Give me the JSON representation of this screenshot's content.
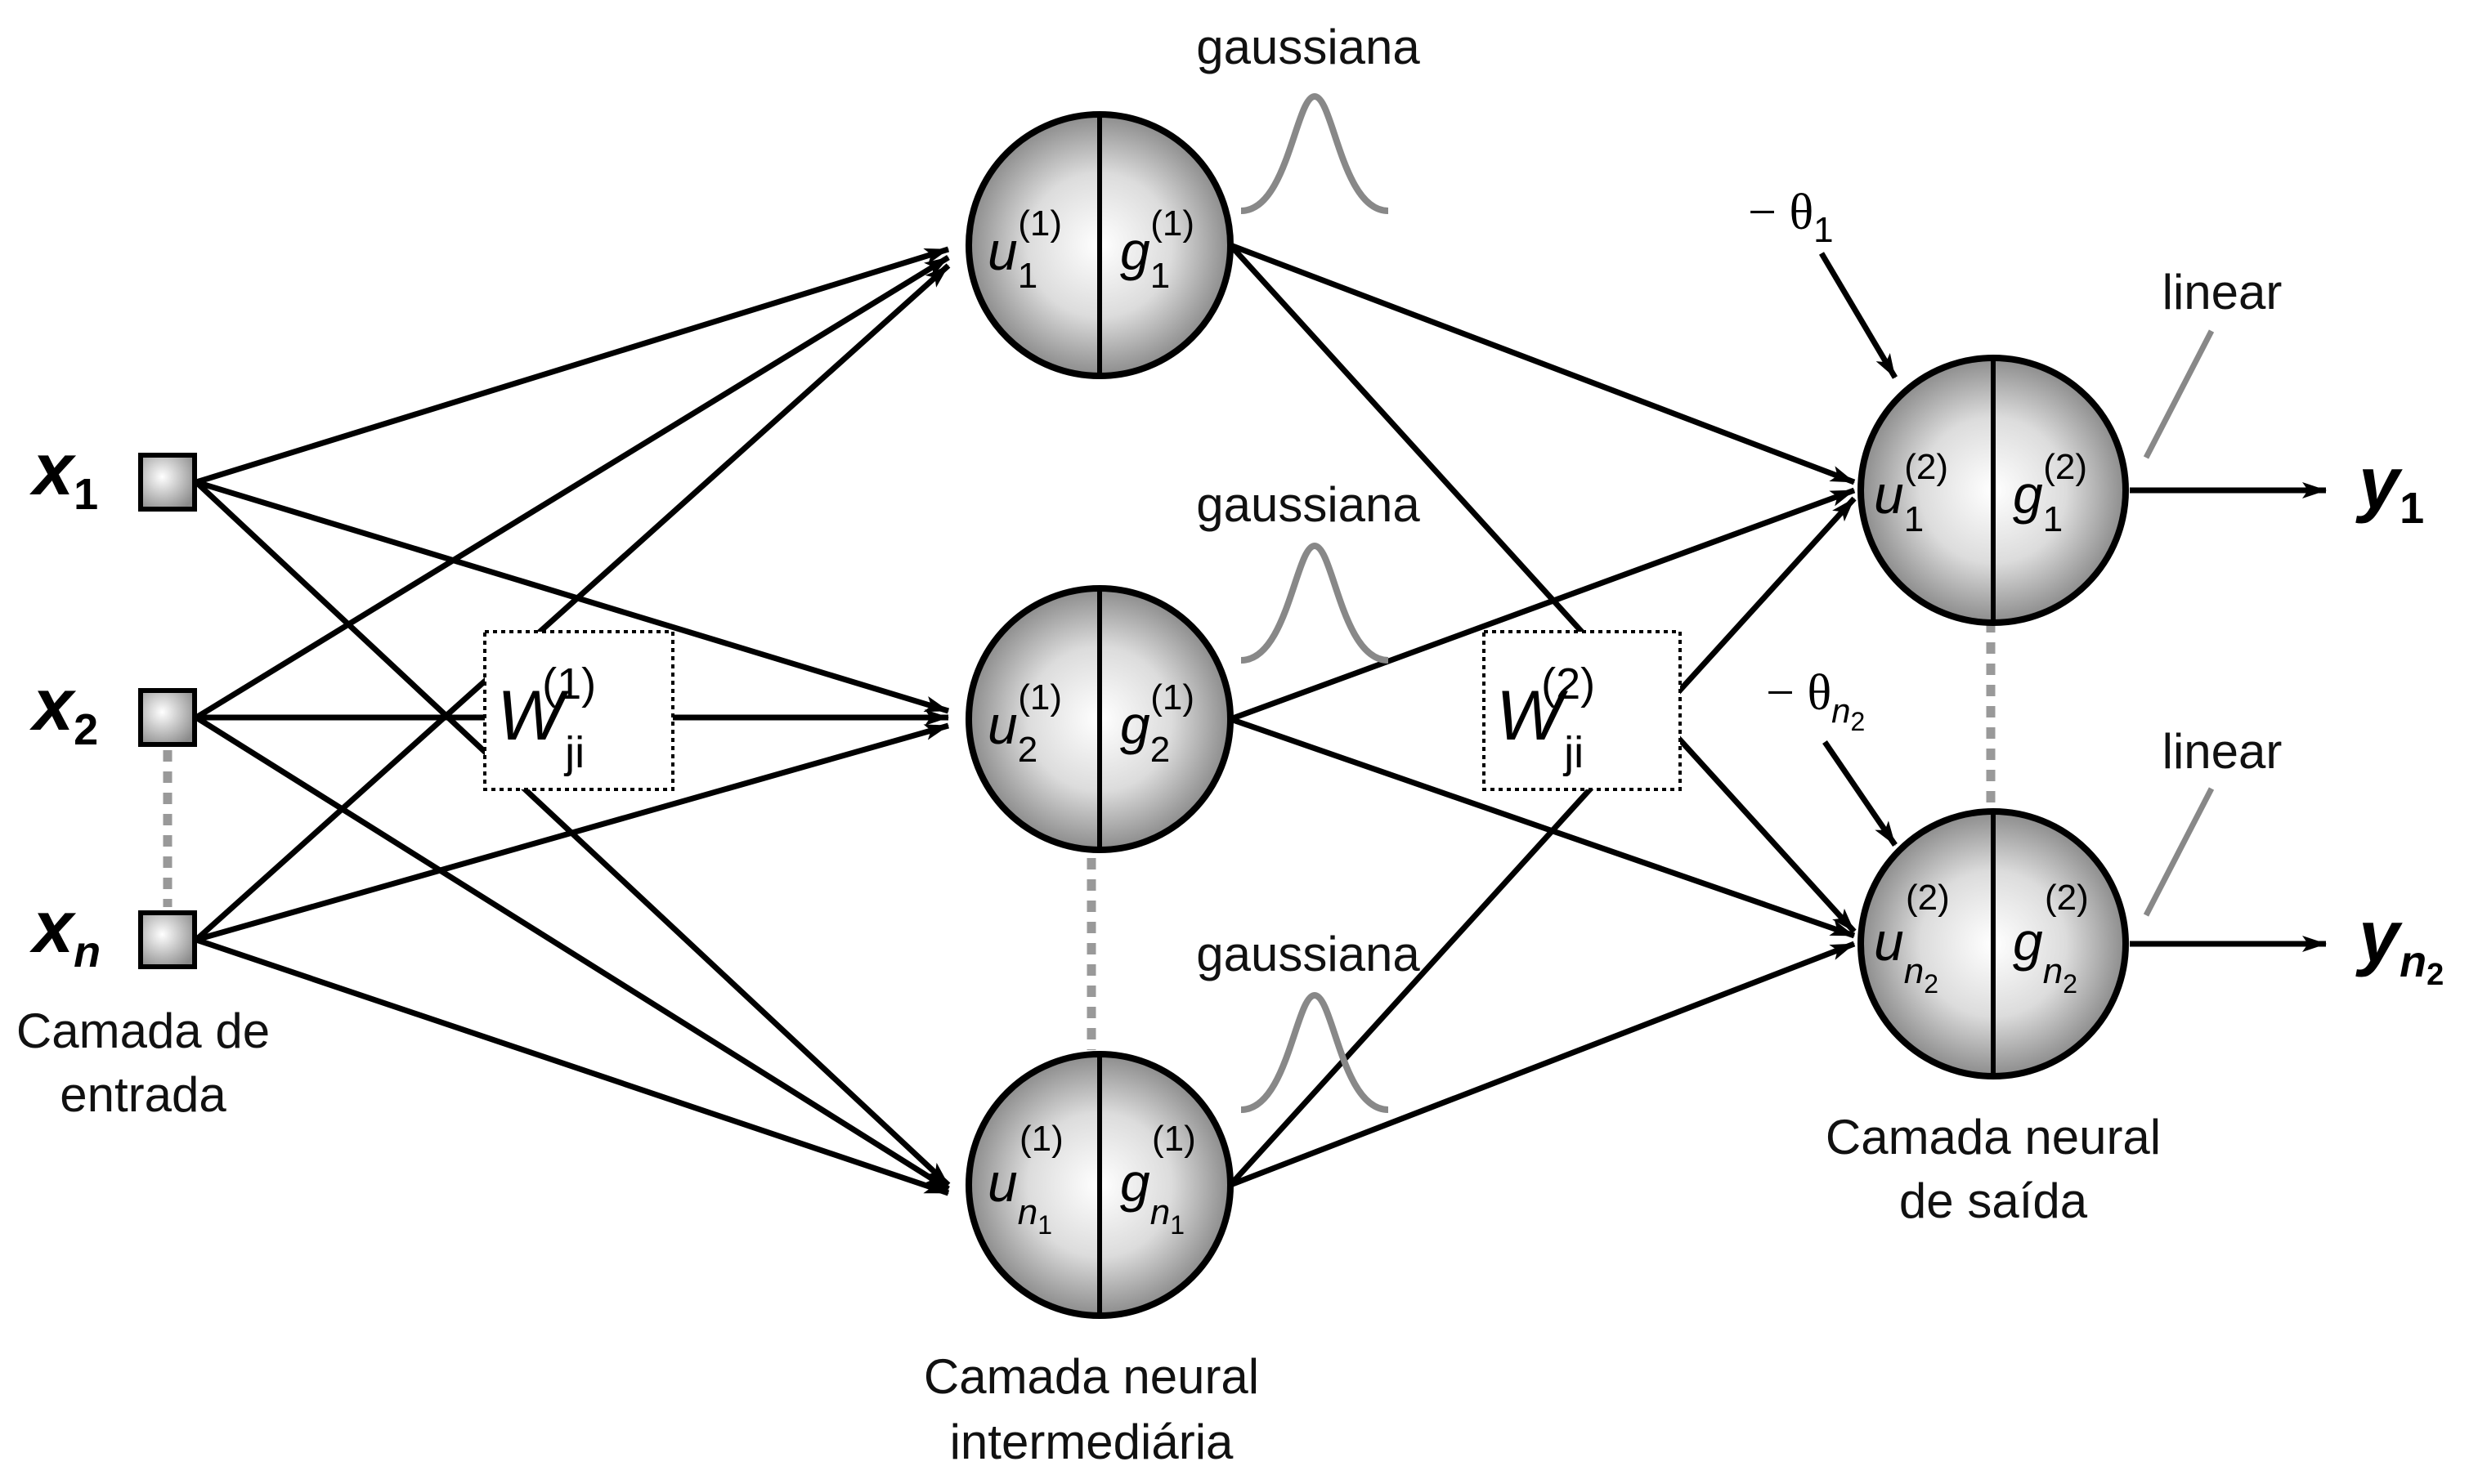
{
  "inputs": {
    "x1": {
      "base": "x",
      "sub": "1"
    },
    "x2": {
      "base": "x",
      "sub": "2"
    },
    "xn": {
      "base": "x",
      "sub": "n"
    },
    "caption_line1": "Camada de",
    "caption_line2": "entrada"
  },
  "hidden": {
    "activation_label": "gaussiana",
    "caption_line1": "Camada neural",
    "caption_line2": "intermediária",
    "neurons": [
      {
        "u": "u",
        "g": "g",
        "sub": "1",
        "sup": "(1)"
      },
      {
        "u": "u",
        "g": "g",
        "sub": "2",
        "sup": "(1)"
      },
      {
        "u": "u",
        "g": "g",
        "sub": "n",
        "subsub": "1",
        "sup": "(1)"
      }
    ]
  },
  "output": {
    "activation_label": "linear",
    "caption_line1": "Camada neural",
    "caption_line2": "de saída",
    "neurons": [
      {
        "u": "u",
        "g": "g",
        "sub": "1",
        "sup": "(2)",
        "bias": "− θ",
        "bias_sub": "1",
        "y": "y",
        "y_sub": "1"
      },
      {
        "u": "u",
        "g": "g",
        "sub": "n",
        "subsub": "2",
        "sup": "(2)",
        "bias": "− θ",
        "bias_sub": "n",
        "bias_subsub": "2",
        "y": "y",
        "y_sub": "n",
        "y_subsub": "2"
      }
    ]
  },
  "weights": {
    "w1": {
      "base": "W",
      "sub": "ji",
      "sup": "(1)"
    },
    "w2": {
      "base": "W",
      "sub": "ji",
      "sup": "(2)"
    }
  }
}
